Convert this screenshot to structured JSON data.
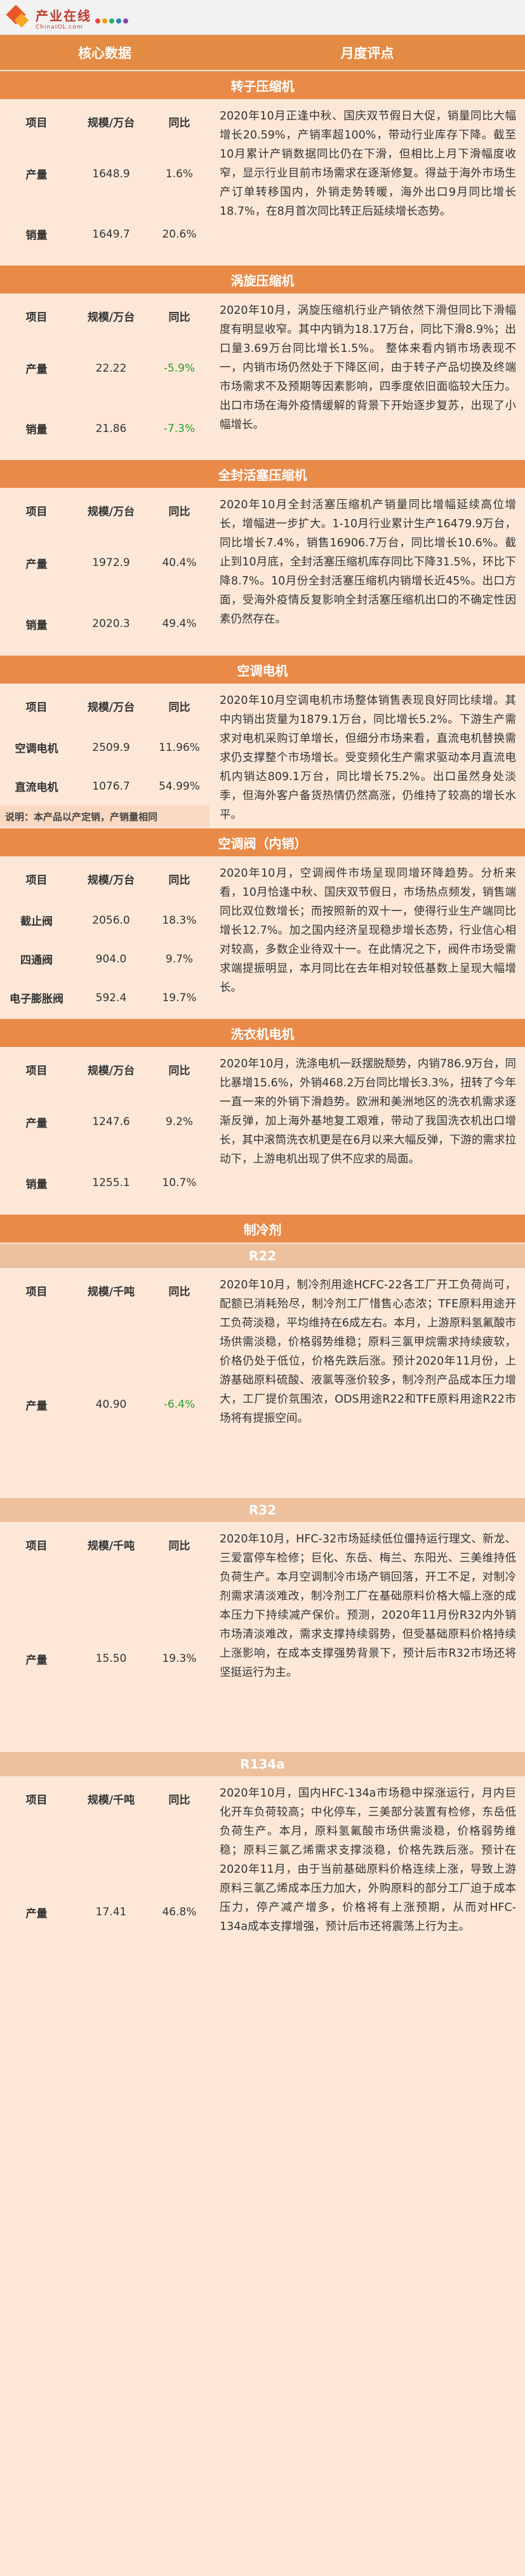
{
  "logo": {
    "cn": "产业在线",
    "en": "ChinaIOL.com",
    "dots": [
      "#e74c3c",
      "#f39c12",
      "#27ae60",
      "#2980b9",
      "#8e44ad"
    ]
  },
  "header": {
    "col1": "核心数据",
    "col2": "月度评点"
  },
  "sections": [
    {
      "title": "转子压缩机",
      "labels": {
        "item": "项目",
        "scale": "规模/万台",
        "yoy": "同比"
      },
      "rows": [
        {
          "name": "产量",
          "value": "1648.9",
          "yoy": "1.6%"
        },
        {
          "name": "销量",
          "value": "1649.7",
          "yoy": "20.6%"
        }
      ],
      "text": "2020年10月正逢中秋、国庆双节假日大促，销量同比大幅增长20.59%，产销率超100%，带动行业库存下降。截至10月累计产销数据同比仍在下滑，但相比上月下滑幅度收窄，显示行业目前市场需求在逐渐修复。得益于海外市场生产订单转移国内，外销走势转暖，海外出口9月同比增长18.7%，在8月首次同比转正后延续增长态势。"
    },
    {
      "title": "涡旋压缩机",
      "labels": {
        "item": "项目",
        "scale": "规模/万台",
        "yoy": "同比"
      },
      "rows": [
        {
          "name": "产量",
          "value": "22.22",
          "yoy": "-5.9%"
        },
        {
          "name": "销量",
          "value": "21.86",
          "yoy": "-7.3%"
        }
      ],
      "text": "2020年10月，涡旋压缩机行业产销依然下滑但同比下滑幅度有明显收窄。其中内销为18.17万台，同比下滑8.9%；出口量3.69万台同比增长1.5%。 整体来看内销市场表现不一，内销市场仍然处于下降区间，由于转子产品切换及终端市场需求不及预期等因素影响，四季度依旧面临较大压力。出口市场在海外疫情缓解的背景下开始逐步复苏，出现了小幅增长。"
    },
    {
      "title": "全封活塞压缩机",
      "labels": {
        "item": "项目",
        "scale": "规模/万台",
        "yoy": "同比"
      },
      "rows": [
        {
          "name": "产量",
          "value": "1972.9",
          "yoy": "40.4%"
        },
        {
          "name": "销量",
          "value": "2020.3",
          "yoy": "49.4%"
        }
      ],
      "text": "2020年10月全封活塞压缩机产销量同比增幅延续高位增长，增幅进一步扩大。1-10月行业累计生产16479.9万台，同比增长7.4%，销售16906.7万台，同比增长10.6%。截止到10月底，全封活塞压缩机库存同比下降31.5%，环比下降8.7%。10月份全封活塞压缩机内销增长近45%。出口方面，受海外疫情反复影响全封活塞压缩机出口的不确定性因素仍然存在。"
    },
    {
      "title": "空调电机",
      "labels": {
        "item": "项目",
        "scale": "规模/万台",
        "yoy": "同比"
      },
      "rows": [
        {
          "name": "空调电机",
          "value": "2509.9",
          "yoy": "11.96%"
        },
        {
          "name": "直流电机",
          "value": "1076.7",
          "yoy": "54.99%"
        }
      ],
      "note": "说明：本产品以产定销，产销量相同",
      "text": "2020年10月空调电机市场整体销售表现良好同比续增。其中内销出货量为1879.1万台，同比增长5.2%。下游生产需求对电机采购订单增长，但细分市场来看，直流电机替换需求仍支撑整个市场增长。受变频化生产需求驱动本月直流电机内销达809.1万台，同比增长75.2%。出口虽然身处淡季，但海外客户备货热情仍然高涨，仍维持了较高的增长水平。"
    },
    {
      "title": "空调阀（内销）",
      "labels": {
        "item": "项目",
        "scale": "规模/万台",
        "yoy": "同比"
      },
      "rows": [
        {
          "name": "截止阀",
          "value": "2056.0",
          "yoy": "18.3%"
        },
        {
          "name": "四通阀",
          "value": "904.0",
          "yoy": "9.7%"
        },
        {
          "name": "电子膨胀阀",
          "value": "592.4",
          "yoy": "19.7%"
        }
      ],
      "text": "2020年10月，空调阀件市场呈现同增环降趋势。分析来看，10月恰逢中秋、国庆双节假日，市场热点频发，销售端同比双位数增长；而按照新的双十一，使得行业生产端同比增长12.7%。加之国内经济呈现稳步增长态势，行业信心相对较高，多数企业待双十一。在此情况之下，阀件市场受需求端提振明显，本月同比在去年相对较低基数上呈现大幅增长。"
    },
    {
      "title": "洗衣机电机",
      "labels": {
        "item": "项目",
        "scale": "规模/万台",
        "yoy": "同比"
      },
      "rows": [
        {
          "name": "产量",
          "value": "1247.6",
          "yoy": "9.2%"
        },
        {
          "name": "销量",
          "value": "1255.1",
          "yoy": "10.7%"
        }
      ],
      "text": "2020年10月，洗涤电机一跃摆脱颓势，内销786.9万台，同比暴增15.6%，外销468.2万台同比增长3.3%，扭转了今年一直一来的外销下滑趋势。欧洲和美洲地区的洗衣机需求逐渐反弹，加上海外基地复工艰难，带动了我国洗衣机出口增长，其中滚筒洗衣机更是在6月以来大幅反弹，下游的需求拉动下，上游电机出现了供不应求的局面。"
    },
    {
      "title": "制冷剂",
      "subsections": [
        {
          "title": "R22",
          "labels": {
            "item": "项目",
            "scale": "规模/千吨",
            "yoy": "同比"
          },
          "rows": [
            {
              "name": "产量",
              "value": "40.90",
              "yoy": "-6.4%"
            }
          ],
          "text": "2020年10月，制冷剂用途HCFC-22各工厂开工负荷尚可，配额已消耗殆尽，制冷剂工厂惜售心态浓；TFE原料用途开工负荷淡稳，平均维持在6成左右。本月，上游原料氢氟酸市场供需淡稳，价格弱势维稳；原料三氯甲烷需求持续疲软，价格仍处于低位，价格先跌后涨。预计2020年11月份，上游基础原料硫酸、液氯等涨价较多，制冷剂产品成本压力增大，工厂提价氛围浓，ODS用途R22和TFE原料用途R22市场将有提振空间。"
        },
        {
          "title": "R32",
          "labels": {
            "item": "项目",
            "scale": "规模/千吨",
            "yoy": "同比"
          },
          "rows": [
            {
              "name": "产量",
              "value": "15.50",
              "yoy": "19.3%"
            }
          ],
          "text": "2020年10月，HFC-32市场延续低位僵持运行理文、新龙、三爱富停车检修；巨化、东岳、梅兰、东阳光、三美维持低负荷生产。本月空调制冷市场产销回落，开工不足，对制冷剂需求清淡难改，制冷剂工厂在基础原料价格大幅上涨的成本压力下持续减产保价。预测，2020年11月份R32内外销市场清淡难改，需求支撑持续弱势，但受基础原料价格持续上涨影响，在成本支撑强势背景下，预计后市R32市场还将坚挺运行为主。"
        },
        {
          "title": "R134a",
          "labels": {
            "item": "项目",
            "scale": "规模/千吨",
            "yoy": "同比"
          },
          "rows": [
            {
              "name": "产量",
              "value": "17.41",
              "yoy": "46.8%"
            }
          ],
          "text": "2020年10月，国内HFC-134a市场稳中探涨运行，月内巨化开车负荷较高；中化停车，三美部分装置有检修，东岳低负荷生产。本月，原料氢氟酸市场供需淡稳，价格弱势维稳；原料三氯乙烯需求支撑淡稳，价格先跌后涨。预计在2020年11月，由于当前基础原料价格连续上涨，导致上游原料三氯乙烯成本压力加大，外购原料的部分工厂迫于成本压力，停产减产增多，价格将有上涨预期，从而对HFC-134a成本支撑增强，预计后市还将震荡上行为主。"
        }
      ]
    }
  ]
}
